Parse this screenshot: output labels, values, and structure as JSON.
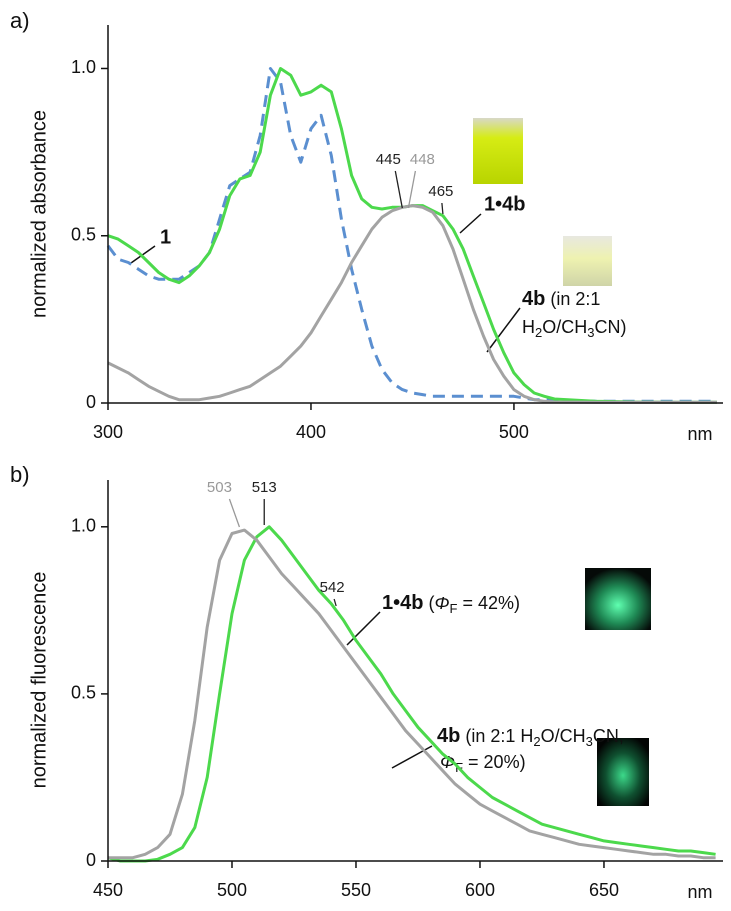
{
  "chart_data": [
    {
      "type": "line",
      "panel_label": "a)",
      "xlabel": "nm",
      "ylabel": "normalized absorbance",
      "xlim": [
        300,
        603
      ],
      "ylim": [
        0,
        1.13
      ],
      "xticks": [
        300,
        400,
        500
      ],
      "yticks": [
        0,
        0.5,
        {
          "value": 1,
          "label": "1.0"
        }
      ],
      "x": [
        300,
        305,
        310,
        315,
        320,
        325,
        330,
        335,
        340,
        345,
        350,
        355,
        360,
        365,
        370,
        375,
        380,
        385,
        390,
        395,
        400,
        405,
        410,
        415,
        420,
        425,
        430,
        435,
        440,
        445,
        450,
        455,
        460,
        465,
        470,
        475,
        480,
        485,
        490,
        495,
        500,
        505,
        510,
        515,
        520,
        540,
        560,
        580,
        600
      ],
      "series": [
        {
          "name": "1",
          "color": "#5b8fd0",
          "linestyle": "dashed",
          "values": [
            0.47,
            0.43,
            0.42,
            0.4,
            0.38,
            0.37,
            0.37,
            0.37,
            0.39,
            0.41,
            0.45,
            0.55,
            0.65,
            0.67,
            0.69,
            0.8,
            1.0,
            0.96,
            0.8,
            0.72,
            0.82,
            0.86,
            0.74,
            0.55,
            0.4,
            0.28,
            0.17,
            0.1,
            0.06,
            0.04,
            0.03,
            0.025,
            0.02,
            0.02,
            0.02,
            0.02,
            0.02,
            0.02,
            0.02,
            0.02,
            0.02,
            0.015,
            0.01,
            0.01,
            0.008,
            0.005,
            0.005,
            0.005,
            0.005
          ]
        },
        {
          "name": "1•4b",
          "color": "#4cd94c",
          "linestyle": "solid",
          "values": [
            0.5,
            0.49,
            0.47,
            0.45,
            0.42,
            0.39,
            0.37,
            0.36,
            0.38,
            0.41,
            0.45,
            0.52,
            0.62,
            0.67,
            0.68,
            0.75,
            0.92,
            1.0,
            0.98,
            0.92,
            0.93,
            0.95,
            0.93,
            0.82,
            0.68,
            0.61,
            0.585,
            0.58,
            0.585,
            0.585,
            0.59,
            0.59,
            0.575,
            0.56,
            0.52,
            0.46,
            0.38,
            0.3,
            0.22,
            0.15,
            0.09,
            0.055,
            0.03,
            0.02,
            0.012,
            0.005,
            0.003,
            0.002,
            0.002
          ]
        },
        {
          "name": "4b",
          "color": "#a3a3a3",
          "linestyle": "solid",
          "note": [
            " (in 2:1",
            "H",
            "2",
            "O/CH",
            "3",
            "CN)"
          ],
          "values": [
            0.12,
            0.105,
            0.09,
            0.07,
            0.05,
            0.035,
            0.02,
            0.01,
            0.01,
            0.01,
            0.015,
            0.02,
            0.03,
            0.04,
            0.05,
            0.07,
            0.09,
            0.11,
            0.14,
            0.17,
            0.21,
            0.26,
            0.31,
            0.36,
            0.42,
            0.47,
            0.52,
            0.555,
            0.575,
            0.585,
            0.59,
            0.585,
            0.57,
            0.53,
            0.46,
            0.37,
            0.28,
            0.2,
            0.13,
            0.08,
            0.04,
            0.02,
            0.01,
            0.005,
            0.003,
            0.002,
            0.002,
            0.002,
            0.002
          ]
        }
      ],
      "peak_labels": [
        {
          "x": 445,
          "color": "#222222"
        },
        {
          "x": 448,
          "color": "#999999"
        },
        {
          "x": 465,
          "color": "#222222"
        }
      ]
    },
    {
      "type": "line",
      "panel_label": "b)",
      "xlabel": "nm",
      "ylabel": "normalized fluorescence",
      "xlim": [
        450,
        698
      ],
      "ylim": [
        0,
        1.14
      ],
      "xticks": [
        450,
        500,
        550,
        600,
        650
      ],
      "yticks": [
        0,
        0.5,
        {
          "value": 1,
          "label": "1.0"
        }
      ],
      "x": [
        450,
        455,
        460,
        465,
        470,
        475,
        480,
        485,
        490,
        495,
        500,
        505,
        510,
        515,
        520,
        525,
        530,
        535,
        540,
        545,
        550,
        555,
        560,
        565,
        570,
        575,
        580,
        585,
        590,
        595,
        600,
        605,
        610,
        615,
        620,
        625,
        630,
        635,
        640,
        645,
        650,
        655,
        660,
        665,
        670,
        675,
        680,
        685,
        690,
        695
      ],
      "series": [
        {
          "name": "1•4b",
          "color": "#4cd94c",
          "linestyle": "solid",
          "note": [
            " (",
            "Φ",
            "F",
            " = 42%)"
          ],
          "values": [
            0.01,
            0,
            0,
            0,
            0.005,
            0.02,
            0.04,
            0.1,
            0.25,
            0.5,
            0.74,
            0.9,
            0.97,
            1.0,
            0.96,
            0.91,
            0.86,
            0.81,
            0.77,
            0.72,
            0.66,
            0.61,
            0.56,
            0.5,
            0.45,
            0.4,
            0.36,
            0.32,
            0.29,
            0.25,
            0.22,
            0.19,
            0.17,
            0.15,
            0.13,
            0.11,
            0.1,
            0.09,
            0.08,
            0.07,
            0.06,
            0.055,
            0.05,
            0.045,
            0.04,
            0.035,
            0.03,
            0.03,
            0.025,
            0.02
          ]
        },
        {
          "name": "4b",
          "color": "#a3a3a3",
          "linestyle": "solid",
          "note": [
            " (in 2:1 H",
            "2",
            "O/CH",
            "3",
            "CN,",
            "Φ",
            "F",
            " = 20%)"
          ],
          "values": [
            0.01,
            0.01,
            0.01,
            0.02,
            0.04,
            0.08,
            0.2,
            0.42,
            0.7,
            0.9,
            0.98,
            0.99,
            0.96,
            0.91,
            0.86,
            0.82,
            0.78,
            0.74,
            0.69,
            0.64,
            0.59,
            0.54,
            0.49,
            0.44,
            0.39,
            0.35,
            0.31,
            0.27,
            0.23,
            0.2,
            0.17,
            0.15,
            0.13,
            0.11,
            0.09,
            0.08,
            0.07,
            0.06,
            0.05,
            0.045,
            0.04,
            0.035,
            0.03,
            0.025,
            0.02,
            0.02,
            0.015,
            0.015,
            0.01,
            0.01
          ]
        }
      ],
      "peak_labels": [
        {
          "x": 503,
          "color": "#999999"
        },
        {
          "x": 513,
          "color": "#222222"
        },
        {
          "x": 542,
          "color": "#222222"
        }
      ]
    }
  ]
}
